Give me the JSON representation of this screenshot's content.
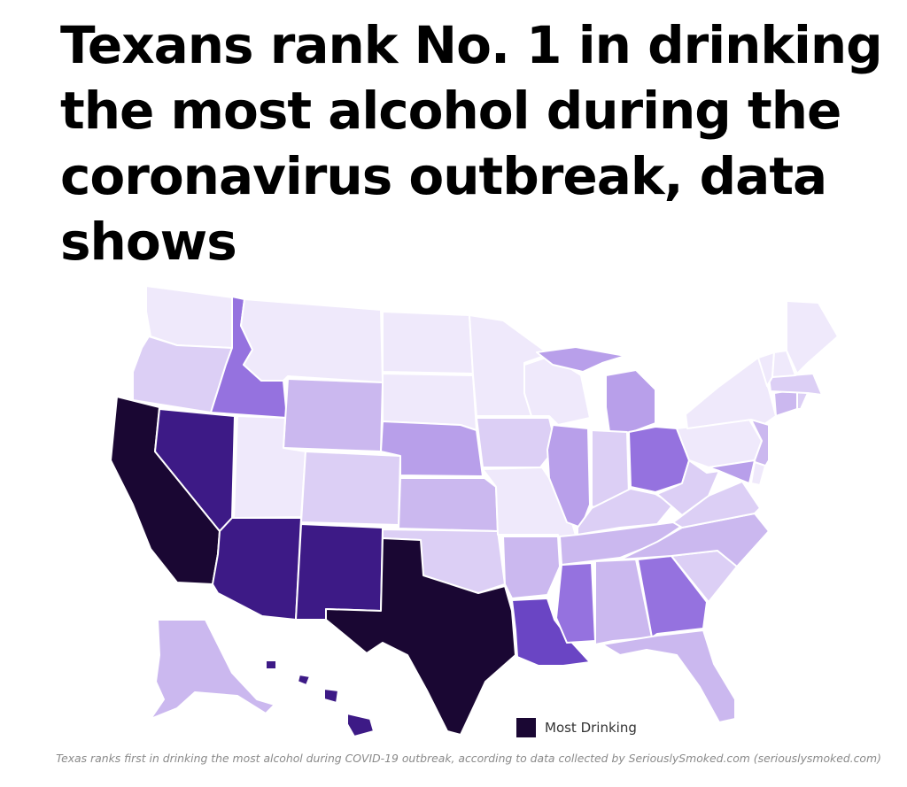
{
  "headline": "Texans rank No. 1 in drinking the most alcohol during the coronavirus outbreak, data shows",
  "caption": "Texas ranks first in drinking the most alcohol during COVID-19 outbreak, according to data collected by SeriouslySmoked.com (seriouslysmoked.com)",
  "legend": {
    "label": "Most Drinking",
    "color": "#1a0733"
  },
  "palette": {
    "l1": "#efe9fb",
    "l2": "#dccff5",
    "l3": "#cbb8ef",
    "l4": "#b89fea",
    "l5": "#9572df",
    "l6": "#6a45c4",
    "l7": "#3d1a86",
    "l8": "#1a0733"
  },
  "states": [
    {
      "id": "WA",
      "level": "l1"
    },
    {
      "id": "OR",
      "level": "l2"
    },
    {
      "id": "CA",
      "level": "l8"
    },
    {
      "id": "ID",
      "level": "l5"
    },
    {
      "id": "NV",
      "level": "l7"
    },
    {
      "id": "MT",
      "level": "l1"
    },
    {
      "id": "WY",
      "level": "l3"
    },
    {
      "id": "UT",
      "level": "l1"
    },
    {
      "id": "AZ",
      "level": "l7"
    },
    {
      "id": "CO",
      "level": "l2"
    },
    {
      "id": "NM",
      "level": "l7"
    },
    {
      "id": "ND",
      "level": "l1"
    },
    {
      "id": "SD",
      "level": "l1"
    },
    {
      "id": "NE",
      "level": "l4"
    },
    {
      "id": "KS",
      "level": "l3"
    },
    {
      "id": "OK",
      "level": "l2"
    },
    {
      "id": "TX",
      "level": "l8"
    },
    {
      "id": "MN",
      "level": "l1"
    },
    {
      "id": "IA",
      "level": "l2"
    },
    {
      "id": "MO",
      "level": "l1"
    },
    {
      "id": "AR",
      "level": "l3"
    },
    {
      "id": "LA",
      "level": "l6"
    },
    {
      "id": "WI",
      "level": "l1"
    },
    {
      "id": "IL",
      "level": "l4"
    },
    {
      "id": "MI",
      "level": "l4"
    },
    {
      "id": "IN",
      "level": "l2"
    },
    {
      "id": "OH",
      "level": "l5"
    },
    {
      "id": "KY",
      "level": "l2"
    },
    {
      "id": "TN",
      "level": "l3"
    },
    {
      "id": "MS",
      "level": "l5"
    },
    {
      "id": "AL",
      "level": "l3"
    },
    {
      "id": "GA",
      "level": "l5"
    },
    {
      "id": "FL",
      "level": "l3"
    },
    {
      "id": "SC",
      "level": "l2"
    },
    {
      "id": "NC",
      "level": "l3"
    },
    {
      "id": "VA",
      "level": "l2"
    },
    {
      "id": "WV",
      "level": "l2"
    },
    {
      "id": "PA",
      "level": "l1"
    },
    {
      "id": "NY",
      "level": "l1"
    },
    {
      "id": "NJ",
      "level": "l3"
    },
    {
      "id": "MD",
      "level": "l4"
    },
    {
      "id": "DE",
      "level": "l1"
    },
    {
      "id": "CT",
      "level": "l3"
    },
    {
      "id": "RI",
      "level": "l2"
    },
    {
      "id": "MA",
      "level": "l2"
    },
    {
      "id": "VT",
      "level": "l1"
    },
    {
      "id": "NH",
      "level": "l1"
    },
    {
      "id": "ME",
      "level": "l1"
    },
    {
      "id": "AK",
      "level": "l3"
    },
    {
      "id": "HI",
      "level": "l7"
    }
  ]
}
